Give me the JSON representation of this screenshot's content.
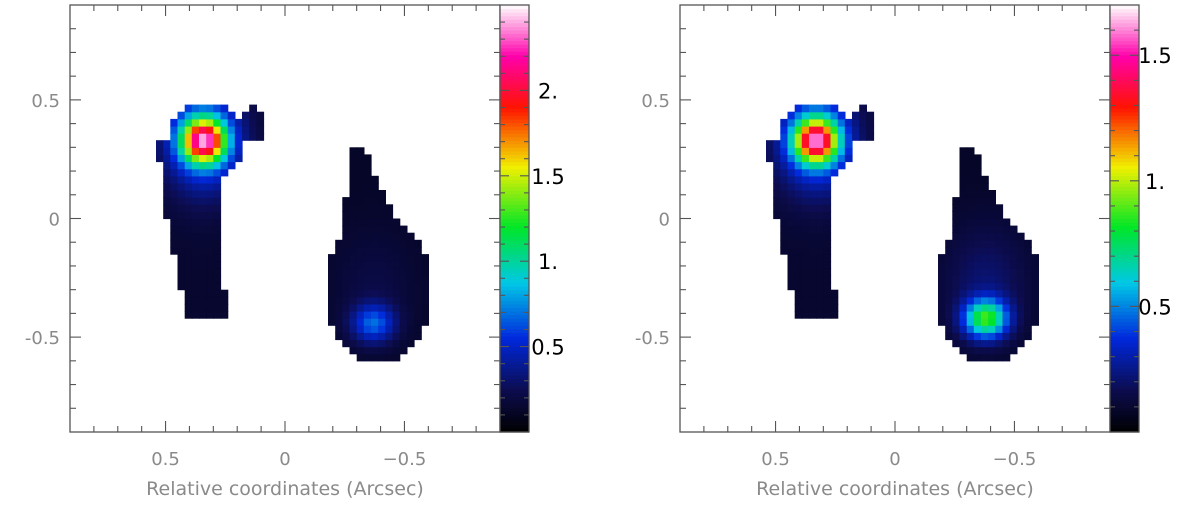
{
  "chart_data": [
    {
      "type": "heatmap",
      "title": "",
      "xlabel": "Relative coordinates (Arcsec)",
      "ylabel": "",
      "xlim": [
        0.9,
        -0.9
      ],
      "ylim": [
        -0.9,
        0.9
      ],
      "x_ticks": [
        0.5,
        0,
        -0.5
      ],
      "x_tick_labels": [
        "0.5",
        "0",
        "−0.5"
      ],
      "y_ticks": [
        0.5,
        0,
        -0.5
      ],
      "y_tick_labels": [
        "0.5",
        "0",
        "-0.5"
      ],
      "colorscale": "rainbow: black-navy-blue-cyan-green-yellow-red-magenta-white",
      "colorbar_range": [
        0,
        2.5
      ],
      "colorbar_ticks": [
        2.0,
        1.5,
        1.0,
        0.5
      ],
      "colorbar_tick_labels": [
        "2.",
        "1.5",
        "1.",
        "0.5"
      ],
      "background": "#ffffff",
      "components": [
        {
          "shape": "upper-left comma",
          "peak_x": 0.34,
          "peak_y": 0.33,
          "peak_value": 2.3
        },
        {
          "shape": "lower-right teardrop",
          "peak_x": -0.37,
          "peak_y": -0.44,
          "peak_value": 0.6
        }
      ]
    },
    {
      "type": "heatmap",
      "title": "",
      "xlabel": "Relative coordinates (Arcsec)",
      "ylabel": "",
      "xlim": [
        0.9,
        -0.9
      ],
      "ylim": [
        -0.9,
        0.9
      ],
      "x_ticks": [
        0.5,
        0,
        -0.5
      ],
      "x_tick_labels": [
        "0.5",
        "0",
        "−0.5"
      ],
      "y_ticks": [
        0.5,
        0,
        -0.5
      ],
      "y_tick_labels": [
        "0.5",
        "0",
        "-0.5"
      ],
      "colorscale": "rainbow: black-navy-blue-cyan-green-yellow-red-magenta-white",
      "colorbar_range": [
        0,
        1.7
      ],
      "colorbar_ticks": [
        1.5,
        1.0,
        0.5
      ],
      "colorbar_tick_labels": [
        "1.5",
        "1.",
        "0.5"
      ],
      "background": "#ffffff",
      "components": [
        {
          "shape": "upper-left comma",
          "peak_x": 0.33,
          "peak_y": 0.33,
          "peak_value": 1.55
        },
        {
          "shape": "lower-right teardrop",
          "peak_x": -0.38,
          "peak_y": -0.42,
          "peak_value": 0.85
        }
      ]
    }
  ]
}
